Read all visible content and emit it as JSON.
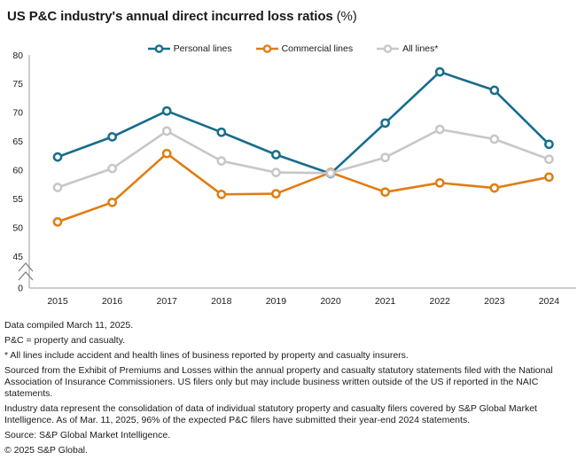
{
  "title": {
    "text": "US P&C industry's annual direct incurred loss ratios",
    "unit": "(%)"
  },
  "chart_data": {
    "type": "line",
    "title": "US P&C industry's annual direct incurred loss ratios (%)",
    "x": [
      "2015",
      "2016",
      "2017",
      "2018",
      "2019",
      "2020",
      "2021",
      "2022",
      "2023",
      "2024"
    ],
    "series": [
      {
        "name": "Personal lines",
        "color": "#176D8C",
        "values": [
          62.3,
          65.8,
          70.3,
          66.6,
          62.7,
          59.4,
          68.2,
          77.1,
          73.9,
          64.5
        ]
      },
      {
        "name": "Commercial lines",
        "color": "#E07D12",
        "values": [
          51.0,
          54.4,
          62.9,
          55.8,
          55.9,
          59.6,
          56.2,
          57.8,
          56.9,
          58.8
        ]
      },
      {
        "name": "All lines*",
        "color": "#C6C7C8",
        "values": [
          57.0,
          60.3,
          66.8,
          61.6,
          59.6,
          59.5,
          62.2,
          67.1,
          65.4,
          61.9
        ]
      }
    ],
    "y_ticks": [
      80,
      75,
      70,
      65,
      60,
      55,
      50,
      45
    ],
    "y_zero_label": "0",
    "ylim": [
      45,
      80
    ],
    "y_axis_break": true,
    "grid": false,
    "legend_position": "top",
    "xlabel": "",
    "ylabel": ""
  },
  "footnotes": [
    "Data compiled March 11, 2025.",
    "P&C = property and casualty.",
    "* All lines include accident and health lines of business reported by property and casualty insurers.",
    "Sourced from the Exhibit of Premiums and Losses within the annual property and casualty statutory statements filed with the National Association of Insurance Commissioners. US filers only but may include business written outside of the US if reported in the NAIC statements.",
    "Industry data represent the consolidation of data of individual statutory property and casualty filers covered by S&P Global Market Intelligence. As of Mar. 11, 2025, 96% of the expected P&C filers have submitted their year-end 2024 statements.",
    "Source: S&P Global Market Intelligence.",
    "© 2025 S&P Global."
  ],
  "colors": {
    "axis": "#9B9B9B",
    "break_mark": "#7F7F7F",
    "text": "#1A1A1A",
    "marker_fill": "#FFFFFF"
  }
}
